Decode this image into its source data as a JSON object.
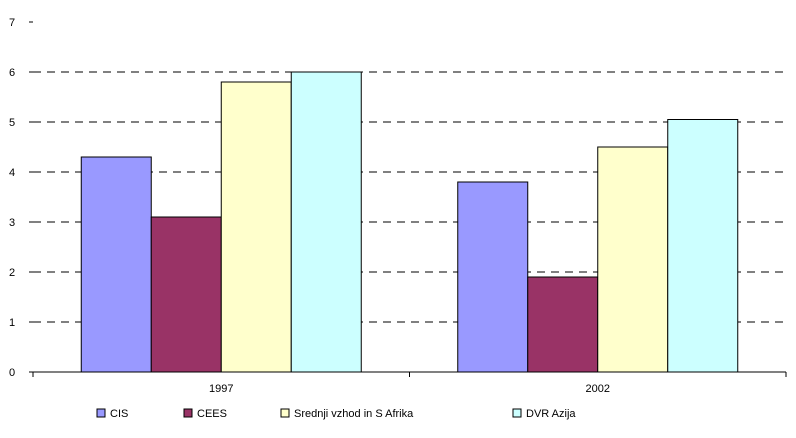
{
  "chart_data": {
    "type": "bar",
    "title": "",
    "xlabel": "",
    "ylabel": "",
    "categories": [
      "1997",
      "2002"
    ],
    "ylim": [
      0,
      7
    ],
    "yticks": [
      0,
      1,
      2,
      3,
      4,
      5,
      6,
      7
    ],
    "grid": true,
    "legend_position": "bottom",
    "series": [
      {
        "name": "CIS",
        "values": [
          4.3,
          3.8
        ],
        "color": "#9999ff"
      },
      {
        "name": "CEES",
        "values": [
          3.1,
          1.9
        ],
        "color": "#993366"
      },
      {
        "name": "Srednji vzhod in S Afrika",
        "values": [
          5.8,
          4.5
        ],
        "color": "#ffffcc"
      },
      {
        "name": "DVR Azija",
        "values": [
          6.0,
          5.05
        ],
        "color": "#ccffff"
      }
    ]
  }
}
